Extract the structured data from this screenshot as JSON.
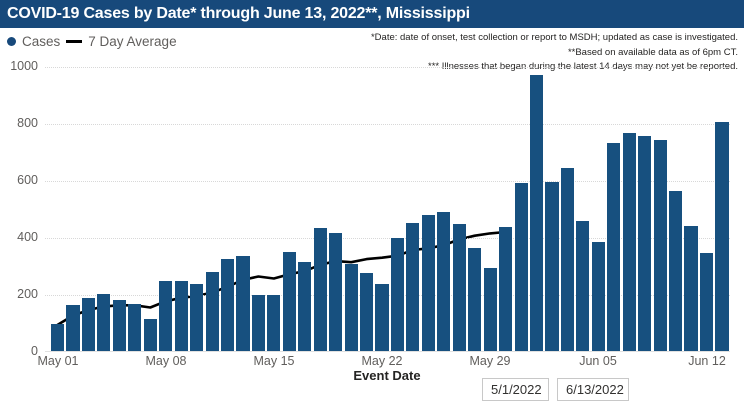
{
  "title": "COVID-19 Cases by Date* through June 13, 2022**, Mississippi",
  "legend": {
    "cases_label": "Cases",
    "avg_label": "7 Day Average",
    "cases_marker": "circle-icon",
    "avg_marker": "line-dash-icon"
  },
  "annotations": [
    "*Date: date of onset, test collection or report to MSDH; updated as case is investigated.",
    "**Based on available data as of 6pm CT.",
    "*** Illnesses that began during the latest 14 days may not yet be reported."
  ],
  "chart_data": {
    "type": "bar",
    "title": "COVID-19 Cases by Date* through June 13, 2022**, Mississippi",
    "xlabel": "Event Date",
    "ylabel": "",
    "ylim": [
      0,
      1000
    ],
    "yticks": [
      0,
      200,
      400,
      600,
      800,
      1000
    ],
    "xticks": [
      "May 01",
      "May 08",
      "May 15",
      "May 22",
      "May 29",
      "Jun 05",
      "Jun 12"
    ],
    "grid": "horizontal-dotted",
    "legend_position": "top-left",
    "categories": [
      "May 01",
      "May 02",
      "May 03",
      "May 04",
      "May 05",
      "May 06",
      "May 07",
      "May 08",
      "May 09",
      "May 10",
      "May 11",
      "May 12",
      "May 13",
      "May 14",
      "May 15",
      "May 16",
      "May 17",
      "May 18",
      "May 19",
      "May 20",
      "May 21",
      "May 22",
      "May 23",
      "May 24",
      "May 25",
      "May 26",
      "May 27",
      "May 28",
      "May 29",
      "May 30",
      "May 31",
      "Jun 01",
      "Jun 02",
      "Jun 03",
      "Jun 04",
      "Jun 05",
      "Jun 06",
      "Jun 07",
      "Jun 08",
      "Jun 09",
      "Jun 10",
      "Jun 11",
      "Jun 12",
      "Jun 13"
    ],
    "series": [
      {
        "name": "Cases",
        "type": "bar",
        "values": [
          95,
          160,
          185,
          200,
          178,
          165,
          112,
          245,
          247,
          234,
          276,
          323,
          335,
          197,
          197,
          348,
          313,
          432,
          414,
          305,
          273,
          235,
          397,
          449,
          477,
          487,
          446,
          362,
          291,
          435,
          588,
          970,
          592,
          642,
          456,
          383,
          730,
          765,
          755,
          740,
          562,
          440,
          344,
          805
        ]
      },
      {
        "name": "7 Day Average",
        "type": "line",
        "values": [
          95,
          128,
          147,
          160,
          164,
          164,
          156,
          178,
          190,
          197,
          208,
          229,
          253,
          265,
          258,
          273,
          284,
          306,
          319,
          315,
          326,
          331,
          338,
          358,
          364,
          375,
          395,
          408,
          416,
          421
        ]
      }
    ]
  },
  "controls": {
    "start_date": "5/1/2022",
    "end_date": "6/13/2022"
  },
  "colors": {
    "title_bg": "#17497B",
    "title_text": "#FFFFFF",
    "bar": "#17507F",
    "avg_line": "#000000",
    "axis_text": "#605E5C",
    "annotation_text": "#252423",
    "gridline": "#D8D8D8"
  }
}
